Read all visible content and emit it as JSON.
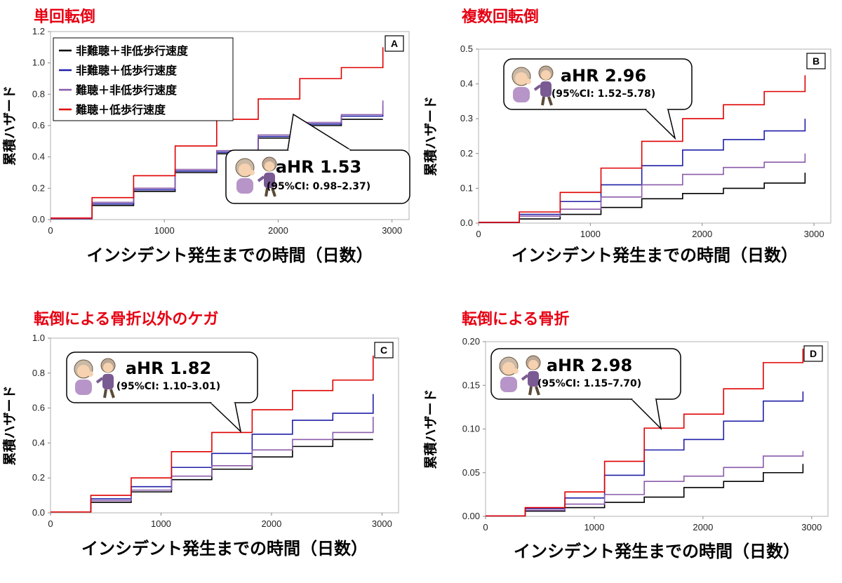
{
  "chart_data": [
    {
      "type": "line",
      "panel_title": "単回転倒",
      "panel_letter": "A",
      "xlabel": "インシデント発生までの時間（日数）",
      "ylabel": "累積ハザード",
      "xlim": [
        0,
        3150
      ],
      "ylim": [
        0,
        1.2
      ],
      "x_ticks": [
        "0",
        "1000",
        "2000",
        "3000"
      ],
      "y_ticks": [
        "0.0",
        "0.2",
        "0.4",
        "0.6",
        "0.8",
        "1.0",
        "1.2"
      ],
      "grid": false,
      "legend": {
        "placement": "top-left",
        "entries": [
          {
            "label": "非難聴＋非低歩行速度",
            "color": "#000000"
          },
          {
            "label": "非難聴＋低歩行速度",
            "color": "#1f1fa8"
          },
          {
            "label": "難聴＋非低歩行速度",
            "color": "#8a5aaa"
          },
          {
            "label": "難聴＋低歩行速度",
            "color": "#e00000"
          }
        ]
      },
      "annotation": {
        "hr": "aHR 1.53",
        "ci": "(95%CI: 0.98–2.37)"
      },
      "series": [
        {
          "color": "#000000",
          "steps": [
            [
              0,
              0.005
            ],
            [
              365,
              0.09
            ],
            [
              730,
              0.18
            ],
            [
              1095,
              0.3
            ],
            [
              1460,
              0.42
            ],
            [
              1825,
              0.52
            ],
            [
              2190,
              0.6
            ],
            [
              2555,
              0.64
            ],
            [
              2920,
              0.64
            ]
          ]
        },
        {
          "color": "#1f1fa8",
          "steps": [
            [
              0,
              0.005
            ],
            [
              365,
              0.1
            ],
            [
              730,
              0.19
            ],
            [
              1095,
              0.31
            ],
            [
              1460,
              0.43
            ],
            [
              1825,
              0.53
            ],
            [
              2190,
              0.61
            ],
            [
              2555,
              0.66
            ],
            [
              2920,
              0.73
            ]
          ]
        },
        {
          "color": "#8a5aaa",
          "steps": [
            [
              0,
              0.005
            ],
            [
              365,
              0.11
            ],
            [
              730,
              0.2
            ],
            [
              1095,
              0.32
            ],
            [
              1460,
              0.44
            ],
            [
              1825,
              0.54
            ],
            [
              2190,
              0.62
            ],
            [
              2555,
              0.67
            ],
            [
              2920,
              0.76
            ]
          ]
        },
        {
          "color": "#e00000",
          "steps": [
            [
              0,
              0.01
            ],
            [
              365,
              0.14
            ],
            [
              730,
              0.28
            ],
            [
              1095,
              0.47
            ],
            [
              1460,
              0.64
            ],
            [
              1825,
              0.77
            ],
            [
              2190,
              0.9
            ],
            [
              2555,
              0.97
            ],
            [
              2920,
              1.1
            ]
          ]
        }
      ]
    },
    {
      "type": "line",
      "panel_title": "複数回転倒",
      "panel_letter": "B",
      "xlabel": "インシデント発生までの時間（日数）",
      "ylabel": "累積ハザード",
      "xlim": [
        0,
        3150
      ],
      "ylim": [
        0,
        0.5
      ],
      "x_ticks": [
        "0",
        "1000",
        "2000",
        "3000"
      ],
      "y_ticks": [
        "0.0",
        "0.1",
        "0.2",
        "0.3",
        "0.4",
        "0.5"
      ],
      "grid": false,
      "annotation": {
        "hr": "aHR 2.96",
        "ci": "(95%CI: 1.52–5.78)"
      },
      "series": [
        {
          "color": "#000000",
          "steps": [
            [
              0,
              0.002
            ],
            [
              365,
              0.012
            ],
            [
              730,
              0.025
            ],
            [
              1095,
              0.045
            ],
            [
              1460,
              0.07
            ],
            [
              1825,
              0.085
            ],
            [
              2190,
              0.1
            ],
            [
              2555,
              0.115
            ],
            [
              2920,
              0.145
            ]
          ]
        },
        {
          "color": "#1f1fa8",
          "steps": [
            [
              0,
              0.002
            ],
            [
              365,
              0.025
            ],
            [
              730,
              0.062
            ],
            [
              1095,
              0.11
            ],
            [
              1460,
              0.165
            ],
            [
              1825,
              0.21
            ],
            [
              2190,
              0.24
            ],
            [
              2555,
              0.265
            ],
            [
              2920,
              0.3
            ]
          ]
        },
        {
          "color": "#8a5aaa",
          "steps": [
            [
              0,
              0.002
            ],
            [
              365,
              0.02
            ],
            [
              730,
              0.04
            ],
            [
              1095,
              0.075
            ],
            [
              1460,
              0.11
            ],
            [
              1825,
              0.14
            ],
            [
              2190,
              0.16
            ],
            [
              2555,
              0.175
            ],
            [
              2920,
              0.2
            ]
          ]
        },
        {
          "color": "#e00000",
          "steps": [
            [
              0,
              0.002
            ],
            [
              365,
              0.032
            ],
            [
              730,
              0.088
            ],
            [
              1095,
              0.158
            ],
            [
              1460,
              0.235
            ],
            [
              1825,
              0.3
            ],
            [
              2190,
              0.34
            ],
            [
              2555,
              0.378
            ],
            [
              2920,
              0.425
            ]
          ]
        }
      ]
    },
    {
      "type": "line",
      "panel_title": "転倒による骨折以外のケガ",
      "panel_letter": "C",
      "xlabel": "インシデント発生までの時間（日数）",
      "ylabel": "累積ハザード",
      "xlim": [
        0,
        3150
      ],
      "ylim": [
        0,
        1.0
      ],
      "x_ticks": [
        "0",
        "1000",
        "2000",
        "3000"
      ],
      "y_ticks": [
        "0.0",
        "0.2",
        "0.4",
        "0.6",
        "0.8",
        "1.0"
      ],
      "grid": false,
      "annotation": {
        "hr": "aHR 1.82",
        "ci": "(95%CI: 1.10–3.01)"
      },
      "series": [
        {
          "color": "#000000",
          "steps": [
            [
              0,
              0.005
            ],
            [
              365,
              0.06
            ],
            [
              730,
              0.12
            ],
            [
              1095,
              0.19
            ],
            [
              1460,
              0.25
            ],
            [
              1825,
              0.32
            ],
            [
              2190,
              0.38
            ],
            [
              2555,
              0.42
            ],
            [
              2920,
              0.42
            ]
          ]
        },
        {
          "color": "#1f1fa8",
          "steps": [
            [
              0,
              0.005
            ],
            [
              365,
              0.08
            ],
            [
              730,
              0.15
            ],
            [
              1095,
              0.26
            ],
            [
              1460,
              0.34
            ],
            [
              1825,
              0.45
            ],
            [
              2190,
              0.53
            ],
            [
              2555,
              0.57
            ],
            [
              2920,
              0.68
            ]
          ]
        },
        {
          "color": "#8a5aaa",
          "steps": [
            [
              0,
              0.005
            ],
            [
              365,
              0.07
            ],
            [
              730,
              0.13
            ],
            [
              1095,
              0.21
            ],
            [
              1460,
              0.27
            ],
            [
              1825,
              0.36
            ],
            [
              2190,
              0.42
            ],
            [
              2555,
              0.46
            ],
            [
              2920,
              0.55
            ]
          ]
        },
        {
          "color": "#e00000",
          "steps": [
            [
              0,
              0.005
            ],
            [
              365,
              0.1
            ],
            [
              730,
              0.2
            ],
            [
              1095,
              0.35
            ],
            [
              1460,
              0.46
            ],
            [
              1825,
              0.59
            ],
            [
              2190,
              0.7
            ],
            [
              2555,
              0.76
            ],
            [
              2920,
              0.9
            ]
          ]
        }
      ]
    },
    {
      "type": "line",
      "panel_title": "転倒による骨折",
      "panel_letter": "D",
      "xlabel": "インシデント発生までの時間（日数）",
      "ylabel": "累積ハザード",
      "xlim": [
        0,
        3150
      ],
      "ylim": [
        0,
        0.2
      ],
      "x_ticks": [
        "0",
        "1000",
        "2000",
        "3000"
      ],
      "y_ticks": [
        "0.00",
        "0.05",
        "0.10",
        "0.15",
        "0.20"
      ],
      "grid": false,
      "annotation": {
        "hr": "aHR 2.98",
        "ci": "(95%CI: 1.15–7.70)"
      },
      "series": [
        {
          "color": "#000000",
          "steps": [
            [
              0,
              0.0005
            ],
            [
              365,
              0.006
            ],
            [
              730,
              0.01
            ],
            [
              1095,
              0.016
            ],
            [
              1460,
              0.022
            ],
            [
              1825,
              0.033
            ],
            [
              2190,
              0.04
            ],
            [
              2555,
              0.05
            ],
            [
              2920,
              0.06
            ]
          ]
        },
        {
          "color": "#1f1fa8",
          "steps": [
            [
              0,
              0.0005
            ],
            [
              365,
              0.009
            ],
            [
              730,
              0.021
            ],
            [
              1095,
              0.047
            ],
            [
              1460,
              0.076
            ],
            [
              1825,
              0.088
            ],
            [
              2190,
              0.109
            ],
            [
              2555,
              0.132
            ],
            [
              2920,
              0.143
            ]
          ]
        },
        {
          "color": "#8a5aaa",
          "steps": [
            [
              0,
              0.0005
            ],
            [
              365,
              0.007
            ],
            [
              730,
              0.014
            ],
            [
              1095,
              0.025
            ],
            [
              1460,
              0.04
            ],
            [
              1825,
              0.046
            ],
            [
              2190,
              0.056
            ],
            [
              2555,
              0.069
            ],
            [
              2920,
              0.075
            ]
          ]
        },
        {
          "color": "#e00000",
          "steps": [
            [
              0,
              0.0005
            ],
            [
              365,
              0.01
            ],
            [
              730,
              0.028
            ],
            [
              1095,
              0.063
            ],
            [
              1460,
              0.101
            ],
            [
              1825,
              0.117
            ],
            [
              2190,
              0.146
            ],
            [
              2555,
              0.176
            ],
            [
              2920,
              0.192
            ]
          ]
        }
      ]
    }
  ]
}
